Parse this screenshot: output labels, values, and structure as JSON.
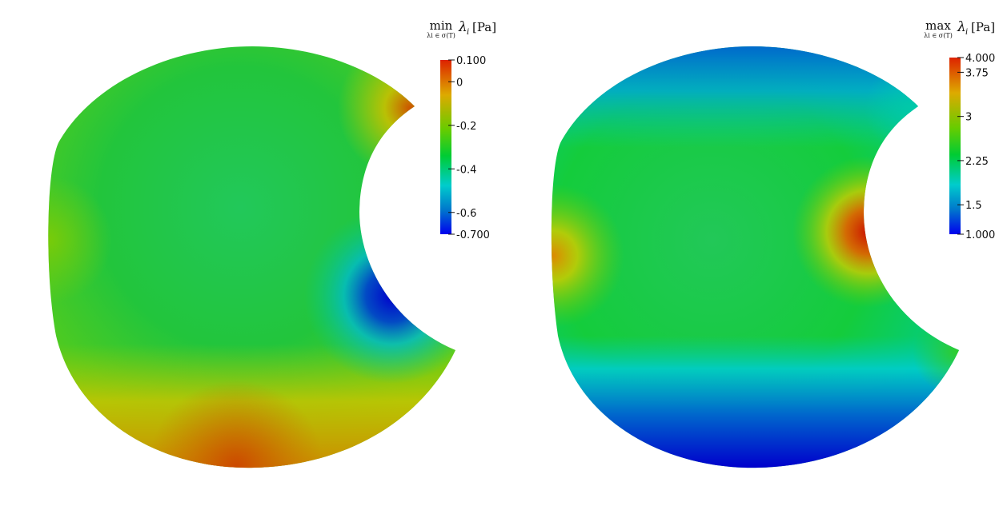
{
  "plots": [
    {
      "title": {
        "operator": "min",
        "subscript": "λi ∈ σ(T)",
        "symbol": "λ",
        "symbol_sub": "i",
        "unit": "[Pa]"
      },
      "colorbar": {
        "range": [
          -0.7,
          0.1
        ],
        "ticks": [
          {
            "value": 0.1,
            "label": "0.100"
          },
          {
            "value": 0.0,
            "label": "0"
          },
          {
            "value": -0.2,
            "label": "-0.2"
          },
          {
            "value": -0.4,
            "label": "-0.4"
          },
          {
            "value": -0.6,
            "label": "-0.6"
          },
          {
            "value": -0.7,
            "label": "-0.700"
          }
        ]
      }
    },
    {
      "title": {
        "operator": "max",
        "subscript": "λi ∈ σ(T)",
        "symbol": "λ",
        "symbol_sub": "i",
        "unit": "[Pa]"
      },
      "colorbar": {
        "range": [
          1.0,
          4.0
        ],
        "ticks": [
          {
            "value": 4.0,
            "label": "4.000"
          },
          {
            "value": 3.75,
            "label": "3.75"
          },
          {
            "value": 3.0,
            "label": "3"
          },
          {
            "value": 2.25,
            "label": "2.25"
          },
          {
            "value": 1.5,
            "label": "1.5"
          },
          {
            "value": 1.0,
            "label": "1.000"
          }
        ]
      }
    }
  ],
  "colors": {
    "blue": "#0000cc",
    "cyan": "#00cccc",
    "green": "#00cc00",
    "yellow": "#cccc00",
    "orange": "#dd6600",
    "red": "#cc0000"
  }
}
